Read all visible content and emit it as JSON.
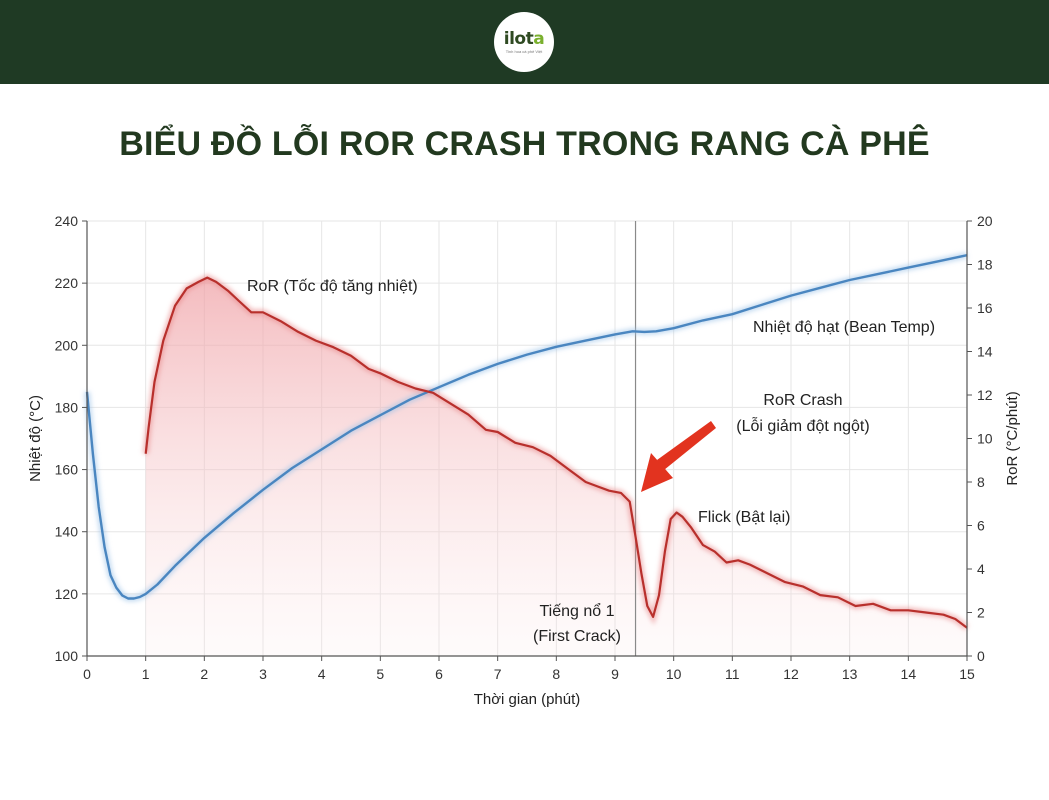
{
  "header": {
    "logo_text_main": "ilot",
    "logo_text_accent": "a",
    "logo_tagline": "Tinh hoa cà phê Việt"
  },
  "title": "BIỂU ĐỒ LỖI ROR CRASH TRONG RANG CÀ PHÊ",
  "colors": {
    "header_bg": "#1f3a24",
    "bean_line": "#4a86c0",
    "ror_line": "#b8302c",
    "ror_fill": "#f3c4c6",
    "arrow": "#e2331f"
  },
  "chart_data": {
    "type": "line",
    "xlabel": "Thời gian (phút)",
    "ylabel_left": "Nhiệt độ (°C)",
    "ylabel_right": "RoR (°C/phút)",
    "xlim": [
      0,
      15
    ],
    "ylim_left": [
      100,
      240
    ],
    "ylim_right": [
      0,
      20
    ],
    "x_ticks": [
      0,
      1,
      2,
      3,
      4,
      5,
      6,
      7,
      8,
      9,
      10,
      11,
      12,
      13,
      14,
      15
    ],
    "y_left_ticks": [
      100,
      120,
      140,
      160,
      180,
      200,
      220,
      240
    ],
    "y_right_ticks": [
      0,
      2,
      4,
      6,
      8,
      10,
      12,
      14,
      16,
      18,
      20
    ],
    "grid": true,
    "series": [
      {
        "name": "Nhiệt độ hạt (Bean Temp)",
        "axis": "left",
        "x": [
          0,
          0.1,
          0.2,
          0.3,
          0.4,
          0.5,
          0.6,
          0.7,
          0.8,
          0.9,
          1.0,
          1.2,
          1.5,
          2,
          2.5,
          3,
          3.5,
          4,
          4.5,
          5,
          5.5,
          6,
          6.5,
          7,
          7.5,
          8,
          8.5,
          9,
          9.3,
          9.5,
          9.7,
          10,
          10.5,
          11,
          11.5,
          12,
          12.5,
          13,
          13.5,
          14,
          14.5,
          15
        ],
        "values": [
          185,
          165,
          148,
          135,
          126,
          122,
          119.5,
          118.5,
          118.5,
          119,
          120,
          123,
          129,
          138,
          146,
          153.5,
          160.5,
          166.5,
          172.5,
          177.5,
          182.5,
          186.5,
          190.5,
          194,
          197,
          199.5,
          201.5,
          203.5,
          204.5,
          204.3,
          204.5,
          205.5,
          208,
          210,
          213,
          216,
          218.5,
          221,
          223,
          225,
          227,
          229
        ]
      },
      {
        "name": "RoR (Tốc độ tăng nhiệt)",
        "axis": "right",
        "x": [
          1.0,
          1.05,
          1.15,
          1.3,
          1.5,
          1.7,
          1.9,
          2.05,
          2.2,
          2.4,
          2.6,
          2.8,
          3.0,
          3.3,
          3.6,
          3.9,
          4.2,
          4.5,
          4.8,
          5.0,
          5.3,
          5.6,
          5.9,
          6.2,
          6.5,
          6.8,
          7.0,
          7.3,
          7.6,
          7.9,
          8.2,
          8.5,
          8.7,
          8.9,
          9.1,
          9.25,
          9.35,
          9.45,
          9.55,
          9.65,
          9.75,
          9.85,
          9.95,
          10.05,
          10.15,
          10.3,
          10.5,
          10.7,
          10.9,
          11.1,
          11.3,
          11.6,
          11.9,
          12.2,
          12.5,
          12.8,
          13.1,
          13.4,
          13.7,
          14.0,
          14.3,
          14.6,
          14.8,
          15.0
        ],
        "values": [
          9.3,
          10.5,
          12.6,
          14.5,
          16.1,
          16.9,
          17.2,
          17.4,
          17.2,
          16.8,
          16.3,
          15.8,
          15.8,
          15.4,
          14.9,
          14.5,
          14.2,
          13.8,
          13.2,
          13.0,
          12.6,
          12.3,
          12.1,
          11.6,
          11.1,
          10.4,
          10.3,
          9.8,
          9.6,
          9.2,
          8.6,
          8.0,
          7.8,
          7.6,
          7.5,
          7.1,
          5.5,
          3.8,
          2.3,
          1.8,
          2.8,
          4.8,
          6.3,
          6.6,
          6.4,
          5.9,
          5.1,
          4.8,
          4.3,
          4.4,
          4.2,
          3.8,
          3.4,
          3.2,
          2.8,
          2.7,
          2.3,
          2.4,
          2.1,
          2.1,
          2.0,
          1.9,
          1.7,
          1.3
        ]
      }
    ],
    "vline": {
      "x": 9.35,
      "label_line1": "Tiếng nổ 1",
      "label_line2": "(First Crack)"
    },
    "annotations": {
      "ror_label": "RoR (Tốc độ tăng nhiệt)",
      "bean_label": "Nhiệt độ hạt (Bean Temp)",
      "crash_line1": "RoR Crash",
      "crash_line2": "(Lỗi giảm đột ngột)",
      "flick": "Flick (Bật lại)"
    }
  }
}
